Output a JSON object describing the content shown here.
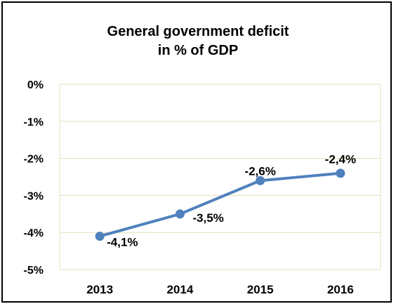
{
  "chart_data": {
    "type": "line",
    "title_lines": [
      "General government deficit",
      "in % of GDP"
    ],
    "categories": [
      "2013",
      "2014",
      "2015",
      "2016"
    ],
    "series": [
      {
        "values": [
          -4.1,
          -3.5,
          -2.6,
          -2.4
        ],
        "labels": [
          "-4,1%",
          "-3,5%",
          "-2,6%",
          "-2,4%"
        ]
      }
    ],
    "ylim": [
      -5,
      0
    ],
    "yticks": [
      0,
      -1,
      -2,
      -3,
      -4,
      -5
    ],
    "ytick_labels": [
      "0%",
      "-1%",
      "-2%",
      "-3%",
      "-4%",
      "-5%"
    ],
    "grid": true,
    "line_color": "#4f81bd",
    "grid_color": "#e6e0b8"
  }
}
